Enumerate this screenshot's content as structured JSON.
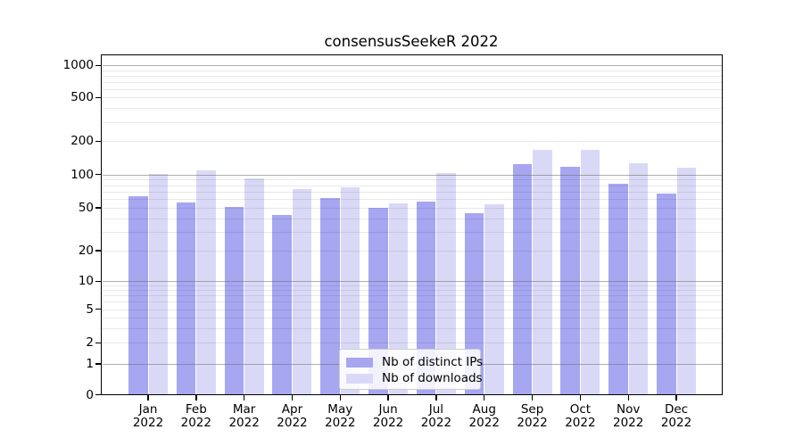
{
  "title": "consensusSeekeR 2022",
  "colors": {
    "ips": "#a6a6f1",
    "downloads": "#d9d9f7",
    "grid_major": "#6e6e6e",
    "grid_minor": "#e2e2e2",
    "spine": "#000000"
  },
  "legend": {
    "items": [
      {
        "label": "Nb of distinct IPs",
        "series": "ips"
      },
      {
        "label": "Nb of downloads",
        "series": "downloads"
      }
    ]
  },
  "y_axis": {
    "tick_labels": [
      "0",
      "1",
      "2",
      "5",
      "10",
      "20",
      "50",
      "100",
      "200",
      "500",
      "1000"
    ],
    "tick_values": [
      0,
      1,
      2,
      5,
      10,
      20,
      50,
      100,
      200,
      500,
      1000
    ]
  },
  "x_axis": {
    "months": [
      "Jan",
      "Feb",
      "Mar",
      "Apr",
      "May",
      "Jun",
      "Jul",
      "Aug",
      "Sep",
      "Oct",
      "Nov",
      "Dec"
    ],
    "year": "2022"
  },
  "chart_data": {
    "type": "bar",
    "title": "consensusSeekeR 2022",
    "categories": [
      "Jan 2022",
      "Feb 2022",
      "Mar 2022",
      "Apr 2022",
      "May 2022",
      "Jun 2022",
      "Jul 2022",
      "Aug 2022",
      "Sep 2022",
      "Oct 2022",
      "Nov 2022",
      "Dec 2022"
    ],
    "series": [
      {
        "name": "Nb of distinct IPs",
        "color": "#a6a6f1",
        "values": [
          64,
          56,
          51,
          43,
          61,
          50,
          57,
          45,
          125,
          118,
          83,
          67
        ]
      },
      {
        "name": "Nb of downloads",
        "color": "#d9d9f7",
        "values": [
          101,
          110,
          92,
          74,
          77,
          55,
          103,
          54,
          166,
          168,
          127,
          115
        ]
      }
    ],
    "yscale": "symlog",
    "y_ticks": [
      0,
      1,
      2,
      5,
      10,
      20,
      50,
      100,
      200,
      500,
      1000
    ],
    "ylim": [
      0,
      1258
    ],
    "xlabel": "",
    "ylabel": "",
    "grid": true,
    "legend_position": "lower center"
  }
}
